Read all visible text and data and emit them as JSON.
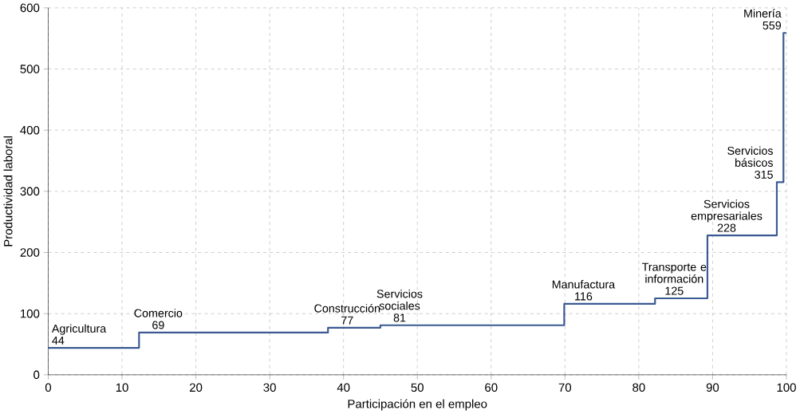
{
  "chart_data": {
    "type": "step",
    "xlabel": "Participación en el empleo",
    "ylabel": "Productividad laboral",
    "x": [
      0,
      12.3,
      37.9,
      45,
      69.9,
      82.2,
      89.3,
      98.7,
      99.6
    ],
    "values": [
      44,
      69,
      77,
      81,
      116,
      125,
      228,
      315,
      559
    ],
    "color": "#3b5a92",
    "data_labels": true,
    "grid": true,
    "xlim": [
      0,
      100
    ],
    "ylim": [
      0,
      600
    ],
    "xticks": [
      0,
      10,
      20,
      30,
      40,
      50,
      60,
      70,
      80,
      90,
      100
    ],
    "yticks": [
      0,
      100,
      200,
      300,
      400,
      500,
      600
    ],
    "annotations": [
      {
        "text": "Agricultura",
        "x": 0,
        "y": 44
      },
      {
        "text": "Comercio",
        "x": 12.3,
        "y": 69
      },
      {
        "text": "Construcción",
        "x": 37.9,
        "y": 77
      },
      {
        "text": "Servicios sociales",
        "x": 45,
        "y": 81
      },
      {
        "text": "Manufactura",
        "x": 69.9,
        "y": 116
      },
      {
        "text": "Transporte e información",
        "x": 82.2,
        "y": 125
      },
      {
        "text": "Servicios empresariales",
        "x": 89.3,
        "y": 228
      },
      {
        "text": "Servicios básicos",
        "x": 98.7,
        "y": 315
      },
      {
        "text": "Minería",
        "x": 99.8,
        "y": 559
      }
    ]
  }
}
